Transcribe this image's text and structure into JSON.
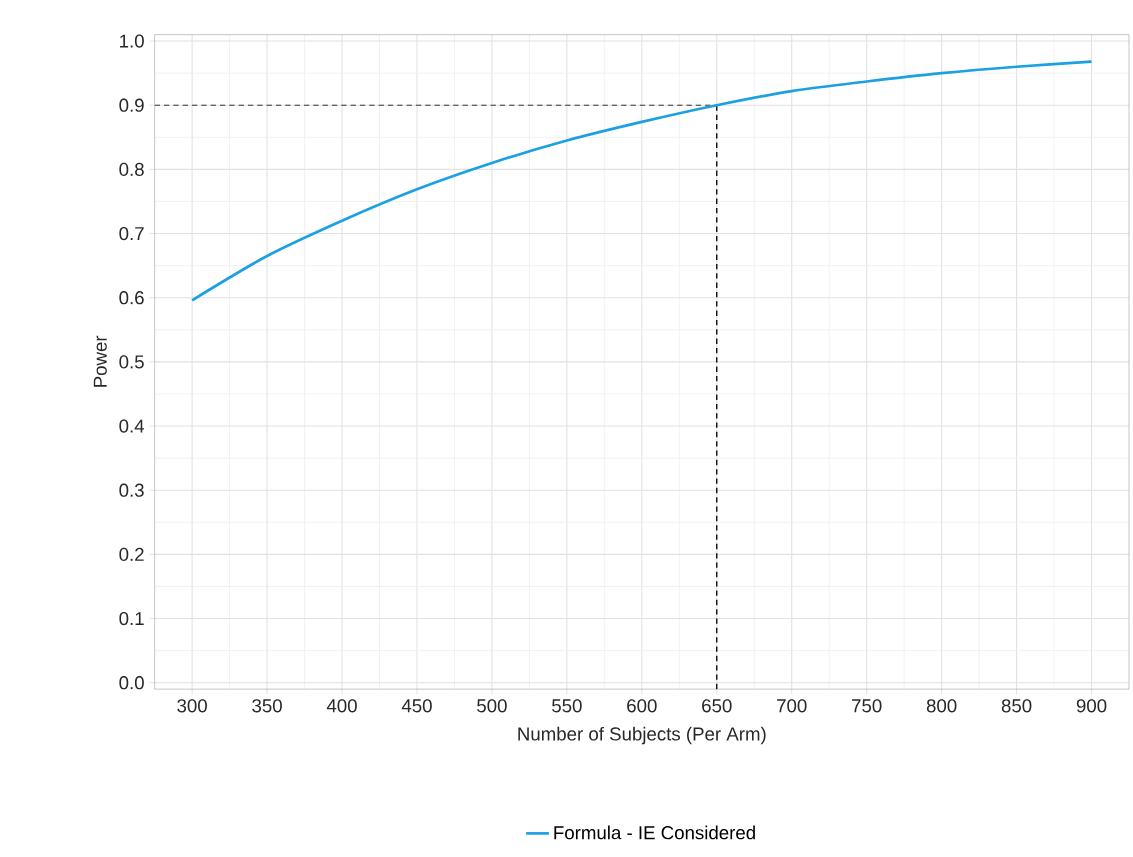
{
  "chart_data": {
    "type": "line",
    "xlabel": "Number of Subjects (Per Arm)",
    "ylabel": "Power",
    "x": [
      300,
      350,
      400,
      450,
      500,
      550,
      600,
      650,
      700,
      750,
      800,
      850,
      900
    ],
    "series": [
      {
        "name": "Formula - IE Considered",
        "color": "#1ba1e2",
        "values": [
          0.596,
          0.665,
          0.72,
          0.769,
          0.81,
          0.845,
          0.874,
          0.9,
          0.922,
          0.937,
          0.95,
          0.96,
          0.968
        ]
      }
    ],
    "xlim": [
      275,
      925
    ],
    "ylim": [
      -0.01,
      1.01
    ],
    "xticks": [
      300,
      350,
      400,
      450,
      500,
      550,
      600,
      650,
      700,
      750,
      800,
      850,
      900
    ],
    "yticks": [
      {
        "value": 0,
        "label": "0.0"
      },
      0.1,
      0.2,
      0.3,
      0.4,
      0.5,
      0.6,
      0.7,
      0.8,
      0.9,
      {
        "value": 1,
        "label": "1.0"
      }
    ],
    "ref_lines": [
      {
        "axis": "y",
        "value": 0.9,
        "color": "#666666",
        "line_style": "dashed"
      },
      {
        "axis": "x",
        "value": 650,
        "color": "#000000",
        "line_style": "dashed"
      }
    ],
    "grid": true,
    "legend": "bottom",
    "marker": "none",
    "line_style": "solid"
  }
}
